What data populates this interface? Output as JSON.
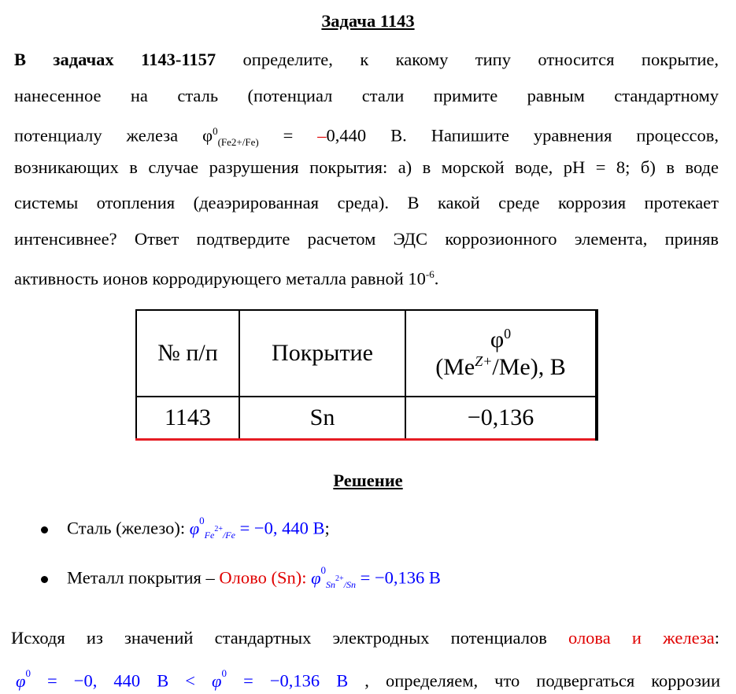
{
  "task": {
    "title": "Задача 1143",
    "lines": [
      {
        "bold": "В задачах   1143-1157",
        "rest": " определите,  к  какому  типу  относится  покрытие,"
      },
      {
        "text": "нанесенное на сталь (потенциал стали примите равным стандартному"
      },
      {
        "pre": "потенциалу железа φ",
        "sup": "0",
        "sub": "(Fe2+/Fe)",
        "mid": " = ",
        "red": "–",
        "post": "0,440 В. Напишите уравнения процессов,"
      },
      {
        "text": "возникающих в случае разрушения покрытия: а) в морской воде, pH = 8; б) в воде"
      },
      {
        "text": "системы отопления (деаэрированная среда). В какой среде коррозия протекает"
      },
      {
        "text": "интенсивнее? Ответ подтвердите расчетом ЭДС коррозионного элемента, приняв"
      },
      {
        "pre": "активность ионов корродирующего металла равной 10",
        "sup": "-6",
        "post": "."
      }
    ]
  },
  "table": {
    "headers": [
      "№ п/п",
      "Покрытие",
      "φ",
      "0",
      "(Me",
      "Z+",
      "/Me), В"
    ],
    "row": [
      "1143",
      "Sn",
      "−0,136"
    ]
  },
  "solution": {
    "title": "Решение",
    "bullet1": {
      "label": "Сталь (железо): ",
      "phi": "φ",
      "sup": "0",
      "sub": "Fe",
      "subsup": "2+",
      "subrest": "/Fe",
      "value": " = −0, 440 В",
      "tail": ";"
    },
    "bullet2": {
      "label": "Металл покрытия – ",
      "red": "Олово (Sn):",
      "phi": "φ",
      "sup": "0",
      "sub": "Sn",
      "subsup": "2+",
      "subrest": "/Sn",
      "value": " = −0,136 В"
    },
    "para": {
      "text": "Исходя из значений стандартных электродных потенциалов ",
      "red": "олова и железа",
      "tail": ":"
    },
    "last": {
      "phi1": "φ",
      "sup1": "0",
      "v1": " = −0, 440 В < ",
      "phi2": "φ",
      "sup2": "0",
      "v2": " = −0,136 В",
      "rest": " ,  определяем,  что  подвергаться  коррозии"
    }
  },
  "colors": {
    "red": "#e00000",
    "blue": "#0000ff",
    "table_bottom": "#e51c23"
  }
}
